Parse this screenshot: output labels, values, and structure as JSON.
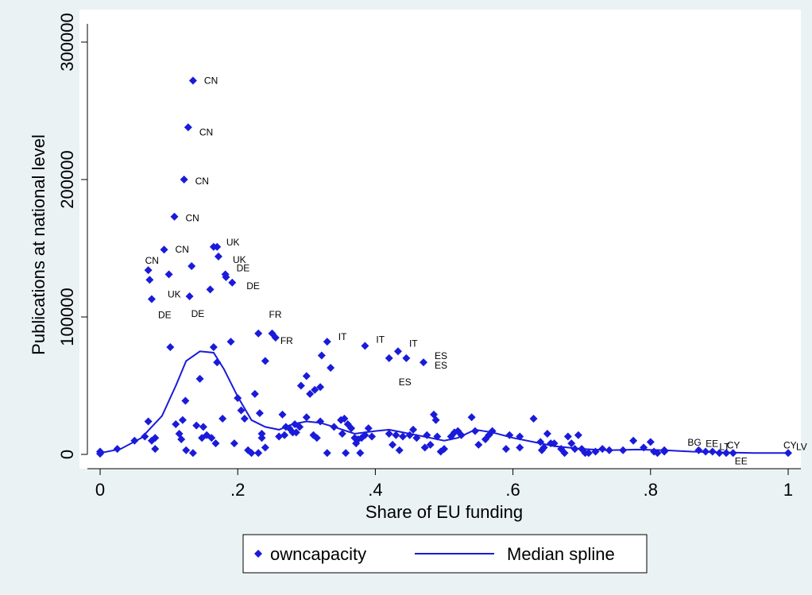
{
  "chart_data": {
    "type": "scatter",
    "xlabel": "Share of EU funding",
    "ylabel": "Publications at national level",
    "xlim": [
      0,
      1
    ],
    "ylim": [
      0,
      300000
    ],
    "x_ticks": [
      "0",
      ".2",
      ".4",
      ".6",
      ".8",
      "1"
    ],
    "y_ticks": [
      "0",
      "100000",
      "200000",
      "300000"
    ],
    "grid": false,
    "legend_position": "bottom",
    "colors": {
      "points": "#1a1adb",
      "spline": "#1a1adb",
      "background": "#eaf2f3"
    },
    "series": [
      {
        "name": "owncapacity",
        "kind": "scatter",
        "points": [
          [
            0.0,
            2000
          ],
          [
            0.0,
            500
          ],
          [
            0.025,
            4000
          ],
          [
            0.05,
            10000
          ],
          [
            0.065,
            13000
          ],
          [
            0.07,
            24000
          ],
          [
            0.075,
            10000
          ],
          [
            0.08,
            12000
          ],
          [
            0.08,
            4000
          ],
          [
            0.07,
            134000
          ],
          [
            0.072,
            127000
          ],
          [
            0.075,
            113000
          ],
          [
            0.093,
            149000
          ],
          [
            0.1,
            131000
          ],
          [
            0.102,
            78000
          ],
          [
            0.108,
            173000
          ],
          [
            0.11,
            22000
          ],
          [
            0.115,
            15000
          ],
          [
            0.118,
            11000
          ],
          [
            0.12,
            25000
          ],
          [
            0.122,
            200000
          ],
          [
            0.124,
            39000
          ],
          [
            0.125,
            3000
          ],
          [
            0.128,
            238000
          ],
          [
            0.13,
            115000
          ],
          [
            0.133,
            137000
          ],
          [
            0.135,
            272000
          ],
          [
            0.135,
            1000
          ],
          [
            0.14,
            21000
          ],
          [
            0.145,
            55000
          ],
          [
            0.148,
            12000
          ],
          [
            0.15,
            20000
          ],
          [
            0.155,
            14000
          ],
          [
            0.16,
            120000
          ],
          [
            0.162,
            12000
          ],
          [
            0.165,
            78000
          ],
          [
            0.165,
            151000
          ],
          [
            0.168,
            8000
          ],
          [
            0.17,
            67000
          ],
          [
            0.17,
            151000
          ],
          [
            0.172,
            144000
          ],
          [
            0.178,
            26000
          ],
          [
            0.182,
            131000
          ],
          [
            0.183,
            129000
          ],
          [
            0.19,
            82000
          ],
          [
            0.192,
            125000
          ],
          [
            0.195,
            8000
          ],
          [
            0.2,
            41000
          ],
          [
            0.205,
            32000
          ],
          [
            0.21,
            26000
          ],
          [
            0.215,
            3000
          ],
          [
            0.22,
            1000
          ],
          [
            0.225,
            44000
          ],
          [
            0.23,
            88000
          ],
          [
            0.23,
            1000
          ],
          [
            0.232,
            30000
          ],
          [
            0.235,
            15000
          ],
          [
            0.235,
            12000
          ],
          [
            0.24,
            68000
          ],
          [
            0.24,
            5000
          ],
          [
            0.25,
            88000
          ],
          [
            0.255,
            85000
          ],
          [
            0.26,
            13000
          ],
          [
            0.265,
            29000
          ],
          [
            0.268,
            14000
          ],
          [
            0.27,
            20000
          ],
          [
            0.275,
            19000
          ],
          [
            0.28,
            16000
          ],
          [
            0.283,
            22000
          ],
          [
            0.285,
            16000
          ],
          [
            0.29,
            20000
          ],
          [
            0.292,
            50000
          ],
          [
            0.3,
            57000
          ],
          [
            0.3,
            27000
          ],
          [
            0.305,
            44000
          ],
          [
            0.31,
            14000
          ],
          [
            0.312,
            47000
          ],
          [
            0.315,
            12000
          ],
          [
            0.32,
            49000
          ],
          [
            0.32,
            24000
          ],
          [
            0.322,
            72000
          ],
          [
            0.33,
            82000
          ],
          [
            0.33,
            1000
          ],
          [
            0.335,
            63000
          ],
          [
            0.34,
            20000
          ],
          [
            0.35,
            25000
          ],
          [
            0.352,
            15000
          ],
          [
            0.355,
            26000
          ],
          [
            0.357,
            1000
          ],
          [
            0.36,
            22000
          ],
          [
            0.365,
            19000
          ],
          [
            0.37,
            12000
          ],
          [
            0.372,
            8000
          ],
          [
            0.375,
            11000
          ],
          [
            0.378,
            1000
          ],
          [
            0.38,
            12000
          ],
          [
            0.385,
            79000
          ],
          [
            0.385,
            14000
          ],
          [
            0.39,
            19000
          ],
          [
            0.395,
            13000
          ],
          [
            0.42,
            70000
          ],
          [
            0.42,
            15000
          ],
          [
            0.425,
            7000
          ],
          [
            0.43,
            14000
          ],
          [
            0.433,
            75000
          ],
          [
            0.435,
            3000
          ],
          [
            0.44,
            13000
          ],
          [
            0.445,
            70000
          ],
          [
            0.45,
            14000
          ],
          [
            0.455,
            18000
          ],
          [
            0.46,
            12000
          ],
          [
            0.47,
            67000
          ],
          [
            0.472,
            5000
          ],
          [
            0.475,
            14000
          ],
          [
            0.48,
            7000
          ],
          [
            0.485,
            29000
          ],
          [
            0.488,
            25000
          ],
          [
            0.49,
            13000
          ],
          [
            0.495,
            2000
          ],
          [
            0.5,
            4000
          ],
          [
            0.51,
            13000
          ],
          [
            0.515,
            16000
          ],
          [
            0.52,
            17000
          ],
          [
            0.525,
            14000
          ],
          [
            0.54,
            27000
          ],
          [
            0.545,
            17000
          ],
          [
            0.55,
            7000
          ],
          [
            0.56,
            11000
          ],
          [
            0.565,
            14000
          ],
          [
            0.57,
            17000
          ],
          [
            0.59,
            4000
          ],
          [
            0.595,
            14000
          ],
          [
            0.61,
            13000
          ],
          [
            0.61,
            5000
          ],
          [
            0.63,
            26000
          ],
          [
            0.64,
            9000
          ],
          [
            0.642,
            3000
          ],
          [
            0.645,
            5000
          ],
          [
            0.65,
            15000
          ],
          [
            0.655,
            8000
          ],
          [
            0.66,
            8000
          ],
          [
            0.67,
            4000
          ],
          [
            0.675,
            1000
          ],
          [
            0.68,
            13000
          ],
          [
            0.685,
            8000
          ],
          [
            0.69,
            4000
          ],
          [
            0.695,
            14000
          ],
          [
            0.7,
            4000
          ],
          [
            0.705,
            1000
          ],
          [
            0.71,
            1000
          ],
          [
            0.72,
            2000
          ],
          [
            0.73,
            4000
          ],
          [
            0.74,
            3000
          ],
          [
            0.76,
            3000
          ],
          [
            0.775,
            10000
          ],
          [
            0.79,
            5000
          ],
          [
            0.8,
            9000
          ],
          [
            0.805,
            2000
          ],
          [
            0.81,
            1000
          ],
          [
            0.82,
            3000
          ],
          [
            0.82,
            2000
          ],
          [
            0.87,
            3000
          ],
          [
            0.88,
            2000
          ],
          [
            0.89,
            2000
          ],
          [
            0.9,
            1000
          ],
          [
            0.91,
            1000
          ],
          [
            0.92,
            1000
          ],
          [
            1.0,
            1000
          ]
        ]
      },
      {
        "name": "Median spline",
        "kind": "line",
        "points": [
          [
            0.0,
            1000
          ],
          [
            0.03,
            4000
          ],
          [
            0.06,
            12000
          ],
          [
            0.09,
            28000
          ],
          [
            0.11,
            50000
          ],
          [
            0.125,
            68000
          ],
          [
            0.145,
            75000
          ],
          [
            0.165,
            74000
          ],
          [
            0.18,
            62000
          ],
          [
            0.2,
            42000
          ],
          [
            0.22,
            25000
          ],
          [
            0.24,
            20000
          ],
          [
            0.26,
            18000
          ],
          [
            0.28,
            22000
          ],
          [
            0.3,
            24000
          ],
          [
            0.32,
            23000
          ],
          [
            0.34,
            20000
          ],
          [
            0.37,
            15000
          ],
          [
            0.4,
            17000
          ],
          [
            0.42,
            18000
          ],
          [
            0.45,
            15000
          ],
          [
            0.48,
            12000
          ],
          [
            0.5,
            10000
          ],
          [
            0.52,
            12000
          ],
          [
            0.545,
            18000
          ],
          [
            0.57,
            16000
          ],
          [
            0.6,
            12000
          ],
          [
            0.63,
            9000
          ],
          [
            0.66,
            6000
          ],
          [
            0.7,
            4000
          ],
          [
            0.74,
            3000
          ],
          [
            0.78,
            3500
          ],
          [
            0.82,
            3000
          ],
          [
            0.86,
            2000
          ],
          [
            0.9,
            1500
          ],
          [
            0.95,
            1000
          ],
          [
            1.0,
            1000
          ]
        ]
      }
    ],
    "annotations": [
      {
        "text": "CN",
        "x": 0.135,
        "y": 272000
      },
      {
        "text": "CN",
        "x": 0.128,
        "y": 238000
      },
      {
        "text": "CN",
        "x": 0.122,
        "y": 200000
      },
      {
        "text": "CN",
        "x": 0.108,
        "y": 173000
      },
      {
        "text": "CN",
        "x": 0.093,
        "y": 149000
      },
      {
        "text": "CN",
        "x": 0.07,
        "y": 134000
      },
      {
        "text": "UK",
        "x": 0.165,
        "y": 151000
      },
      {
        "text": "UK",
        "x": 0.172,
        "y": 144000
      },
      {
        "text": "UK",
        "x": 0.075,
        "y": 113000
      },
      {
        "text": "DE",
        "x": 0.182,
        "y": 131000
      },
      {
        "text": "DE",
        "x": 0.192,
        "y": 125000
      },
      {
        "text": "DE",
        "x": 0.075,
        "y": 113000
      },
      {
        "text": "DE",
        "x": 0.13,
        "y": 115000
      },
      {
        "text": "FR",
        "x": 0.25,
        "y": 88000
      },
      {
        "text": "FR",
        "x": 0.255,
        "y": 85000
      },
      {
        "text": "IT",
        "x": 0.33,
        "y": 82000
      },
      {
        "text": "IT",
        "x": 0.385,
        "y": 79000
      },
      {
        "text": "IT",
        "x": 0.433,
        "y": 75000
      },
      {
        "text": "ES",
        "x": 0.42,
        "y": 70000
      },
      {
        "text": "ES",
        "x": 0.47,
        "y": 67000
      },
      {
        "text": "ES",
        "x": 0.47,
        "y": 67000
      },
      {
        "text": "BG",
        "x": 0.87,
        "y": 3000
      },
      {
        "text": "EE",
        "x": 0.88,
        "y": 2000
      },
      {
        "text": "LT",
        "x": 0.9,
        "y": 1000
      },
      {
        "text": "CY",
        "x": 0.92,
        "y": 1000
      },
      {
        "text": "EE",
        "x": 0.92,
        "y": 1000
      },
      {
        "text": "CY",
        "x": 1.0,
        "y": 1000
      },
      {
        "text": "LV",
        "x": 1.0,
        "y": 1000
      }
    ]
  }
}
